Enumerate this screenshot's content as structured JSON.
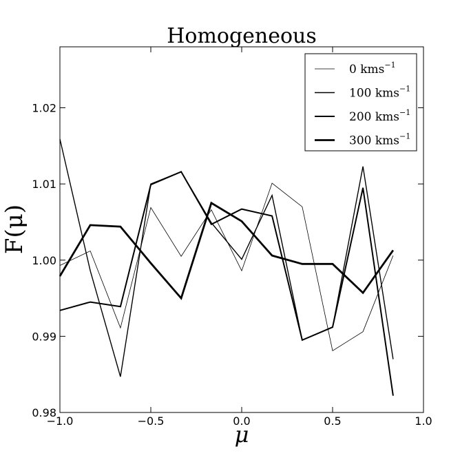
{
  "chart_data": {
    "type": "line",
    "title": "Homogeneous",
    "xlabel": "μ",
    "ylabel": "F(μ)",
    "xlim": [
      -1.0,
      1.0
    ],
    "ylim": [
      0.98,
      1.028
    ],
    "xticks": [
      -1.0,
      -0.5,
      0.0,
      0.5,
      1.0
    ],
    "xtick_labels": [
      "−1.0",
      "−0.5",
      "0.0",
      "0.5",
      "1.0"
    ],
    "yticks": [
      0.98,
      0.99,
      1.0,
      1.01,
      1.02
    ],
    "ytick_labels": [
      "0.98",
      "0.99",
      "1.00",
      "1.01",
      "1.02"
    ],
    "grid": false,
    "legend_position": "top-right",
    "x": [
      -1.0,
      -0.833,
      -0.667,
      -0.5,
      -0.333,
      -0.167,
      0.0,
      0.167,
      0.333,
      0.5,
      0.667,
      0.833
    ],
    "series": [
      {
        "name": "0 kms",
        "unit_sup": "−1",
        "line_width": 0.8,
        "color": "#000000",
        "values": [
          0.9993,
          1.0012,
          0.9911,
          1.0069,
          1.0005,
          1.0066,
          0.9986,
          1.0101,
          1.007,
          0.9881,
          0.9906,
          1.0006
        ]
      },
      {
        "name": "100 kms",
        "unit_sup": "−1",
        "line_width": 1.4,
        "color": "#000000",
        "values": [
          1.0159,
          0.9986,
          0.9847,
          1.01,
          1.0116,
          1.0049,
          1.0001,
          1.0085,
          0.9895,
          0.9912,
          1.0123,
          0.987
        ]
      },
      {
        "name": "200 kms",
        "unit_sup": "−1",
        "line_width": 2.0,
        "color": "#000000",
        "values": [
          0.9934,
          0.9945,
          0.9939,
          1.0099,
          1.0116,
          1.0047,
          1.0067,
          1.0058,
          0.9895,
          0.9912,
          1.0095,
          0.9822
        ]
      },
      {
        "name": "300 kms",
        "unit_sup": "−1",
        "line_width": 2.8,
        "color": "#000000",
        "values": [
          0.9979,
          1.0046,
          1.0044,
          0.9996,
          0.995,
          1.0075,
          1.0051,
          1.0006,
          0.9995,
          0.9995,
          0.9957,
          1.0013
        ]
      }
    ]
  }
}
